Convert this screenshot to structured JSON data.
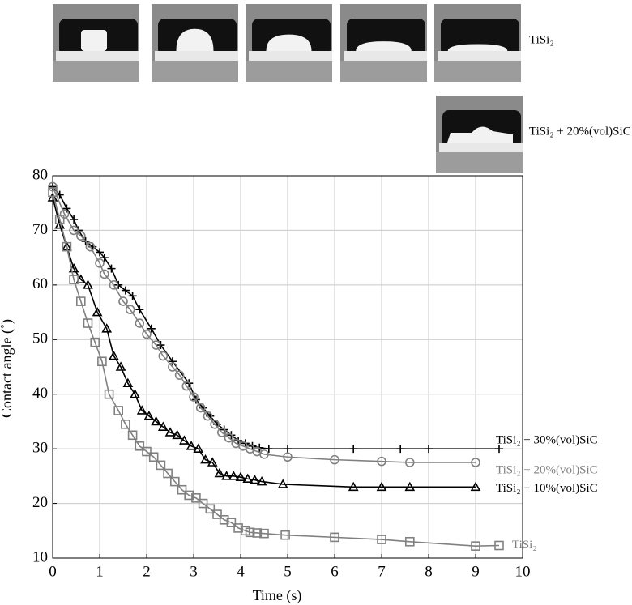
{
  "images": {
    "row1_label": "TiSi₂",
    "row2_label": "TiSi₂ + 20%(vol)SiC"
  },
  "chart_data": {
    "type": "line",
    "x_label": "Time (s)",
    "y_label": "Contact angle (˚)",
    "xlim": [
      0,
      10
    ],
    "ylim": [
      10,
      80
    ],
    "xticks": [
      0,
      1,
      2,
      3,
      4,
      5,
      6,
      7,
      8,
      9,
      10
    ],
    "yticks": [
      10,
      20,
      30,
      40,
      50,
      60,
      70,
      80
    ],
    "grid": true,
    "series": [
      {
        "name": "TiSi₂ + 30%(vol)SiC",
        "color": "#000000",
        "marker": "plus",
        "x": [
          0,
          0.15,
          0.3,
          0.45,
          0.55,
          0.7,
          0.85,
          1.0,
          1.1,
          1.25,
          1.4,
          1.55,
          1.7,
          1.85,
          2.1,
          2.3,
          2.55,
          2.9,
          3.05,
          3.2,
          3.35,
          3.5,
          3.65,
          3.8,
          3.95,
          4.1,
          4.25,
          4.4,
          4.6,
          5.0,
          6.4,
          7.4,
          8.0,
          9.5
        ],
        "values": [
          78,
          76.5,
          74,
          72,
          70,
          68,
          67,
          66,
          65,
          63,
          60,
          59,
          58,
          55.5,
          52,
          49,
          46,
          42,
          39,
          37.5,
          36,
          34.5,
          33.5,
          32.5,
          31.5,
          31,
          30.5,
          30.2,
          30,
          30,
          30,
          30,
          30,
          30
        ]
      },
      {
        "name": "TiSi₂ + 20%(vol)SiC",
        "color": "#808080",
        "marker": "circle",
        "x": [
          0,
          0.25,
          0.45,
          0.6,
          0.8,
          1.0,
          1.1,
          1.3,
          1.5,
          1.65,
          1.85,
          2.0,
          2.2,
          2.35,
          2.55,
          2.7,
          2.85,
          3.0,
          3.15,
          3.3,
          3.45,
          3.6,
          3.75,
          3.9,
          4.05,
          4.2,
          4.35,
          4.5,
          5.0,
          6.0,
          7.0,
          7.6,
          9.0
        ],
        "values": [
          78,
          73,
          70,
          69,
          67,
          64,
          62,
          60,
          57,
          55.5,
          53,
          51,
          49,
          47,
          45,
          43.5,
          41.5,
          39.5,
          37.5,
          36,
          34.5,
          33,
          32,
          31,
          30.5,
          30,
          29.5,
          29,
          28.5,
          28,
          27.7,
          27.5,
          27.5
        ]
      },
      {
        "name": "TiSi₂ + 10%(vol)SiC",
        "color": "#000000",
        "marker": "triangle",
        "x": [
          0,
          0.15,
          0.3,
          0.45,
          0.6,
          0.75,
          0.95,
          1.15,
          1.3,
          1.45,
          1.6,
          1.75,
          1.9,
          2.05,
          2.2,
          2.35,
          2.5,
          2.65,
          2.8,
          2.95,
          3.1,
          3.25,
          3.4,
          3.55,
          3.7,
          3.85,
          4.0,
          4.15,
          4.3,
          4.45,
          4.9,
          6.4,
          7.0,
          7.6,
          9.0
        ],
        "values": [
          76,
          71,
          67,
          63,
          61,
          60,
          55,
          52,
          47,
          45,
          42,
          40,
          37,
          36,
          35,
          34,
          33,
          32.5,
          31.5,
          30.5,
          30,
          28,
          27.5,
          25.5,
          25,
          25,
          24.8,
          24.5,
          24.3,
          24,
          23.5,
          23,
          23,
          23,
          23
        ]
      },
      {
        "name": "TiSi₂",
        "color": "#808080",
        "marker": "square",
        "x": [
          0,
          0.15,
          0.3,
          0.45,
          0.6,
          0.75,
          0.9,
          1.05,
          1.2,
          1.4,
          1.55,
          1.7,
          1.85,
          2.0,
          2.15,
          2.3,
          2.45,
          2.6,
          2.75,
          2.9,
          3.05,
          3.2,
          3.35,
          3.5,
          3.65,
          3.8,
          3.95,
          4.1,
          4.2,
          4.35,
          4.5,
          4.95,
          6.0,
          7.0,
          7.6,
          9.0,
          9.5
        ],
        "values": [
          77,
          72,
          67,
          61,
          57,
          53,
          49.5,
          46,
          40,
          37,
          34.5,
          32.5,
          30.5,
          29.5,
          28.5,
          27,
          25.5,
          24,
          22.5,
          21.5,
          21,
          20,
          19,
          18,
          17,
          16.5,
          15.5,
          15,
          14.7,
          14.6,
          14.5,
          14.2,
          13.8,
          13.4,
          13,
          12.2,
          12.3
        ]
      }
    ]
  }
}
